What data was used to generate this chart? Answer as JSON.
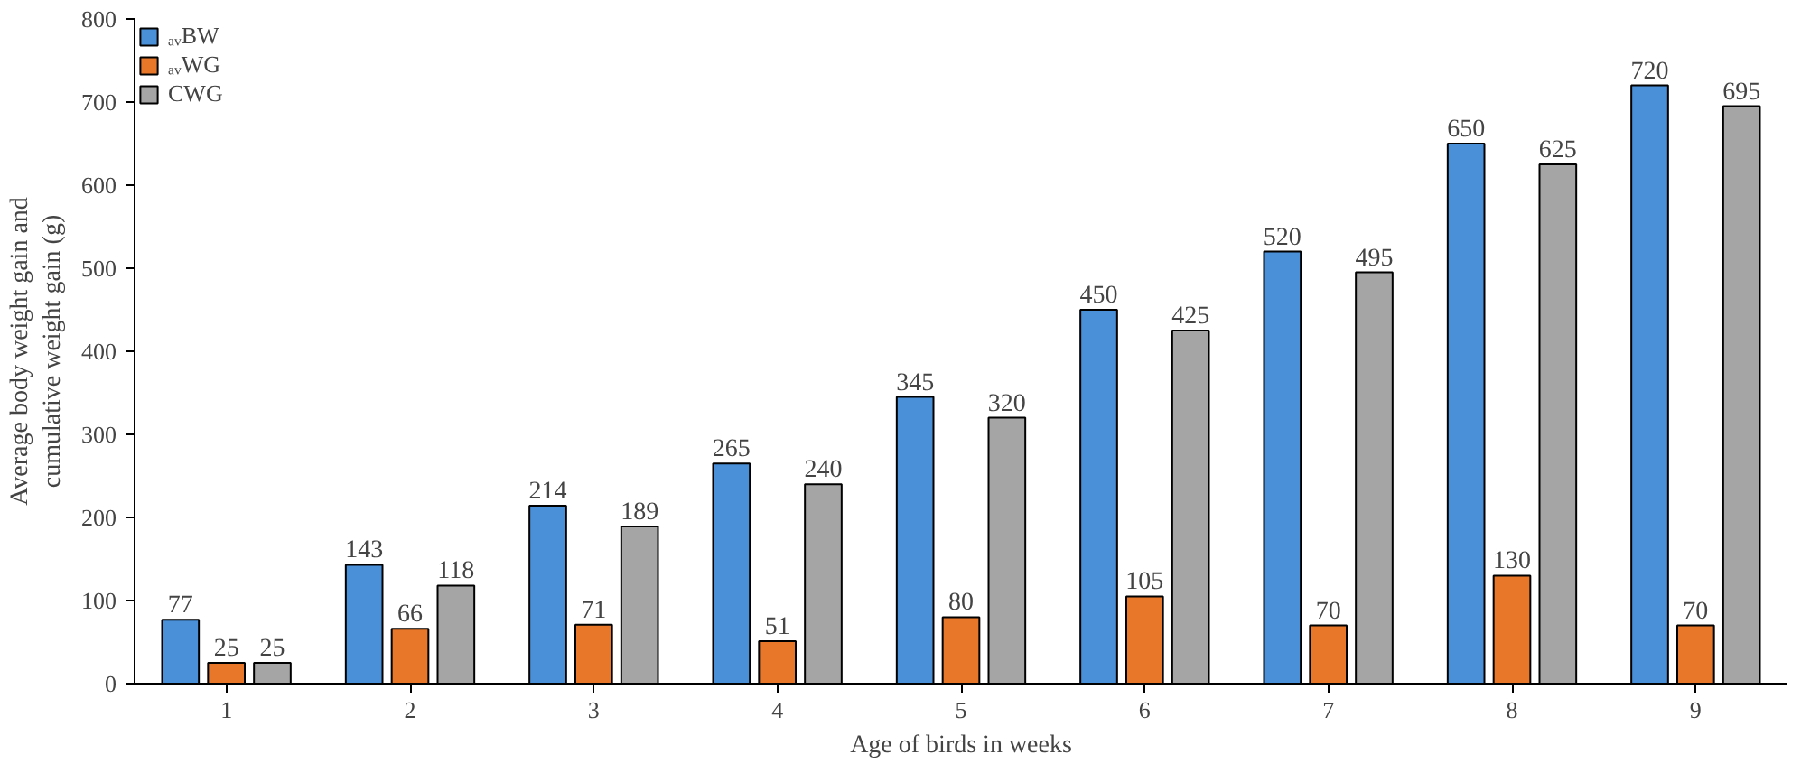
{
  "chart_data": {
    "type": "bar",
    "xlabel": "Age of birds in weeks",
    "ylabel": "Average body weight gain and cumulative weight gain (g)",
    "categories": [
      "1",
      "2",
      "3",
      "4",
      "5",
      "6",
      "7",
      "8",
      "9"
    ],
    "series": [
      {
        "name": "ₐᵥBW",
        "color": "#4a90d9",
        "values": [
          77,
          143,
          214,
          265,
          345,
          450,
          520,
          650,
          720
        ]
      },
      {
        "name": "ₐᵥWG",
        "color": "#e8772a",
        "values": [
          25,
          66,
          71,
          51,
          80,
          105,
          70,
          130,
          70
        ]
      },
      {
        "name": "CWG",
        "color": "#a5a5a5",
        "values": [
          25,
          118,
          189,
          240,
          320,
          425,
          495,
          625,
          695
        ]
      }
    ],
    "ylim": [
      0,
      800
    ],
    "yticks": [
      0,
      100,
      200,
      300,
      400,
      500,
      600,
      700,
      800
    ],
    "data_labels": true,
    "legend": "top left",
    "grid": false
  }
}
